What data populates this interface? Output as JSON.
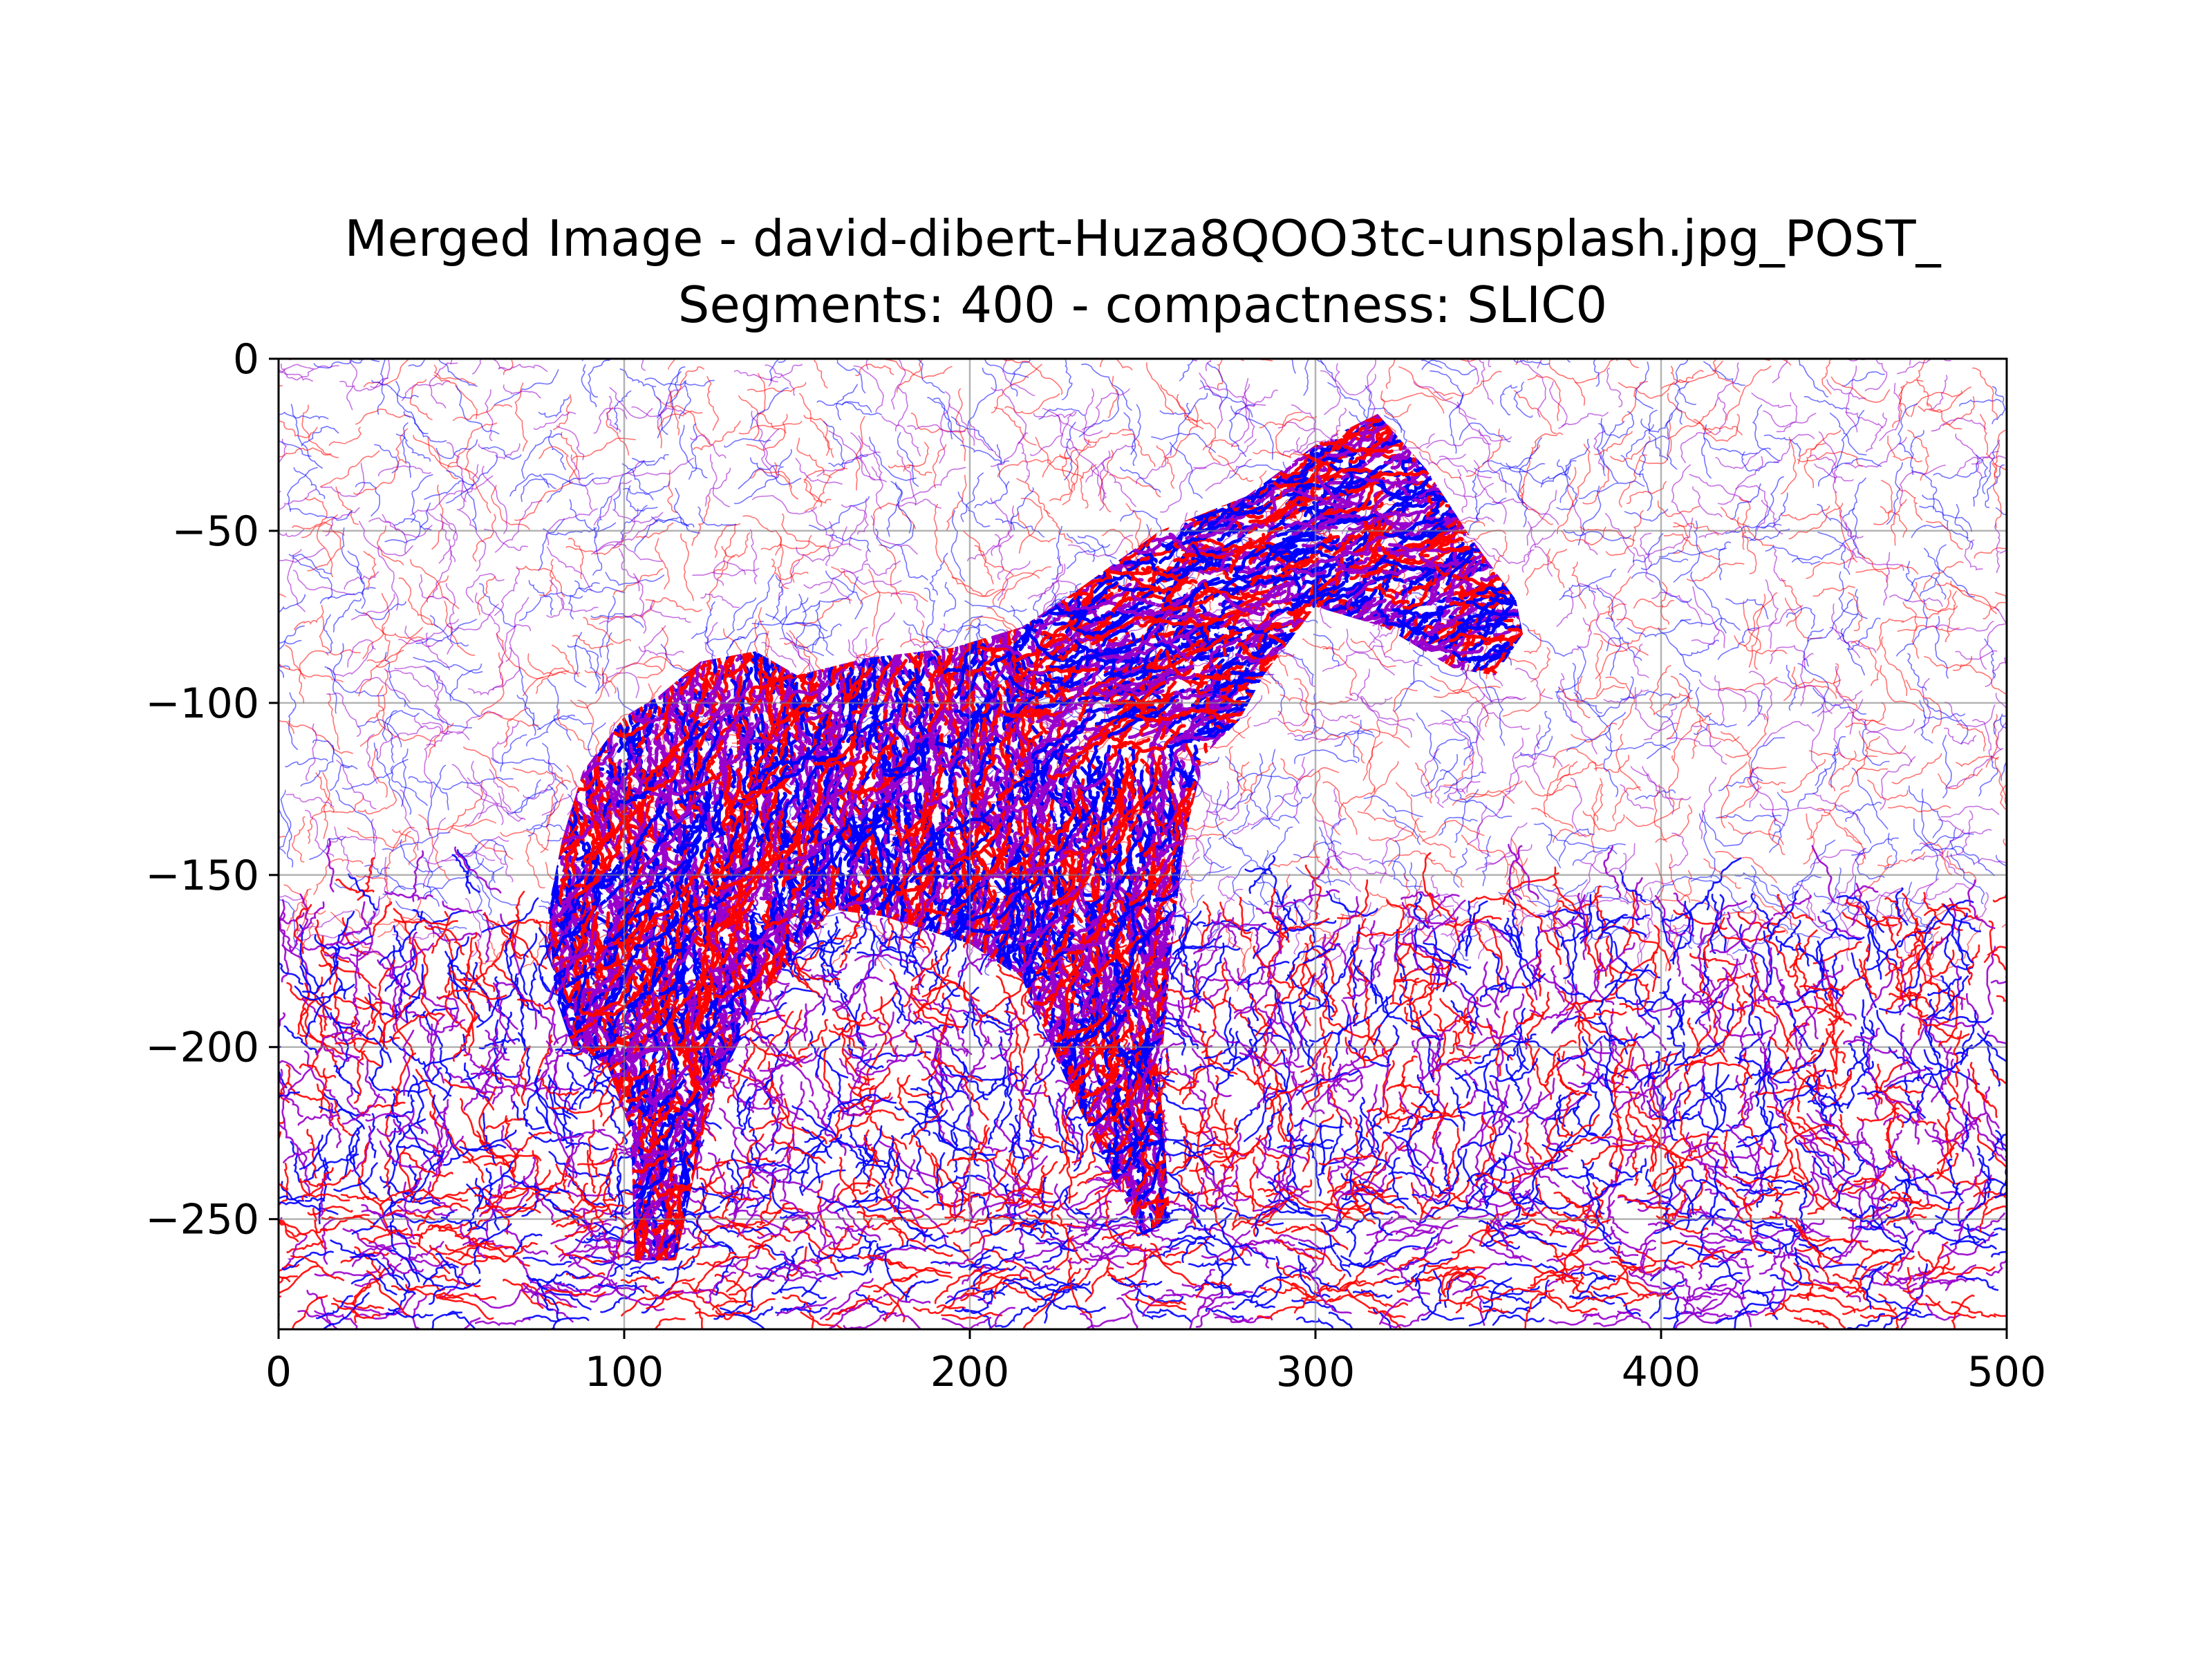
{
  "chart_data": {
    "type": "streamplot",
    "title": "Merged Image - david-dibert-Huza8QOO3tc-unsplash.jpg_POST_",
    "subtitle": "Segments: 400 - compactness: SLIC0",
    "xlabel": "",
    "ylabel": "",
    "xlim": [
      0,
      500
    ],
    "ylim": [
      -282,
      0
    ],
    "x_ticks": [
      0,
      100,
      200,
      300,
      400,
      500
    ],
    "y_ticks": [
      0,
      -50,
      -100,
      -150,
      -200,
      -250
    ],
    "x_tick_labels": [
      "0",
      "100",
      "200",
      "300",
      "400",
      "500"
    ],
    "y_tick_labels": [
      "0",
      "−50",
      "−100",
      "−150",
      "−200",
      "−250"
    ],
    "grid": true,
    "colors": {
      "series_a": "#ff0000",
      "series_b": "#0000ff",
      "blend": "#9900cc",
      "grid": "#808080"
    },
    "subject_outline": [
      [
        80,
        -185
      ],
      [
        78,
        -160
      ],
      [
        82,
        -140
      ],
      [
        88,
        -120
      ],
      [
        100,
        -104
      ],
      [
        110,
        -98
      ],
      [
        122,
        -88
      ],
      [
        138,
        -85
      ],
      [
        150,
        -92
      ],
      [
        170,
        -87
      ],
      [
        195,
        -84
      ],
      [
        215,
        -78
      ],
      [
        230,
        -68
      ],
      [
        255,
        -50
      ],
      [
        280,
        -40
      ],
      [
        300,
        -25
      ],
      [
        318,
        -16
      ],
      [
        332,
        -32
      ],
      [
        345,
        -52
      ],
      [
        358,
        -70
      ],
      [
        360,
        -80
      ],
      [
        352,
        -92
      ],
      [
        340,
        -90
      ],
      [
        320,
        -78
      ],
      [
        300,
        -72
      ],
      [
        285,
        -92
      ],
      [
        278,
        -105
      ],
      [
        268,
        -115
      ],
      [
        262,
        -140
      ],
      [
        258,
        -175
      ],
      [
        255,
        -210
      ],
      [
        258,
        -250
      ],
      [
        250,
        -255
      ],
      [
        240,
        -235
      ],
      [
        228,
        -210
      ],
      [
        215,
        -180
      ],
      [
        200,
        -170
      ],
      [
        175,
        -162
      ],
      [
        160,
        -160
      ],
      [
        140,
        -185
      ],
      [
        125,
        -215
      ],
      [
        115,
        -262
      ],
      [
        103,
        -262
      ],
      [
        102,
        -225
      ],
      [
        95,
        -205
      ],
      [
        85,
        -200
      ]
    ]
  }
}
